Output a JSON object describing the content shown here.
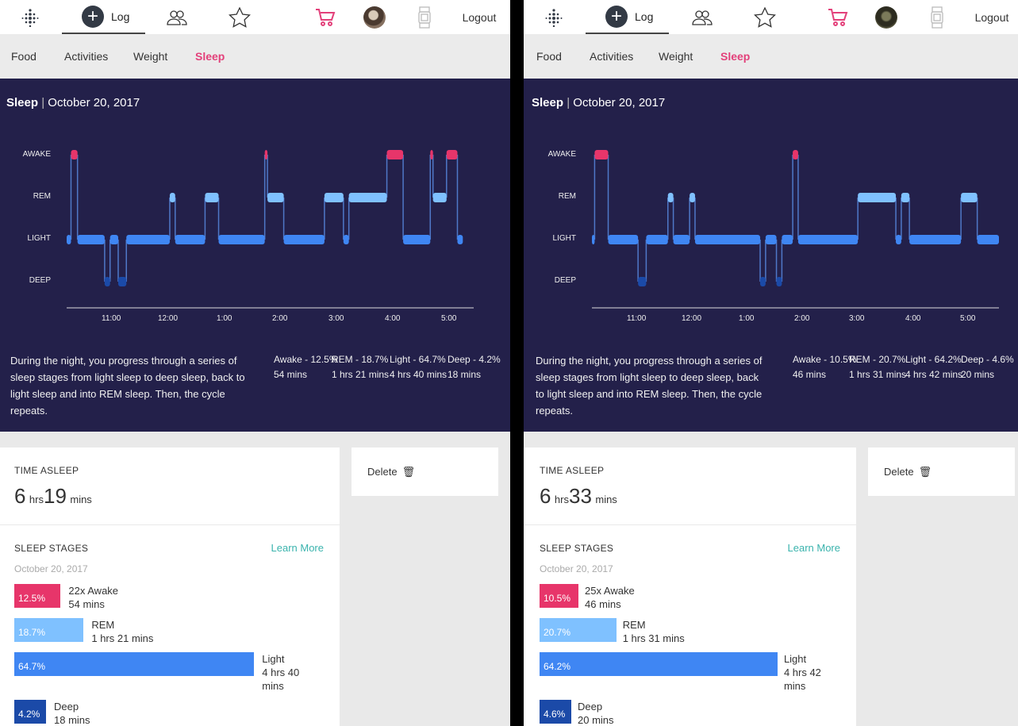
{
  "colors": {
    "awake": "#e7356a",
    "rem": "#7fc1ff",
    "light": "#3f86f3",
    "deep": "#1b4aa8",
    "panel": "#23204a",
    "accent": "#e3407a",
    "link": "#3ab3ad"
  },
  "left": {
    "nav": {
      "log_label": "Log",
      "logout_label": "Logout",
      "icons": [
        "fitbit-logo-icon",
        "plus-icon",
        "friends-icon",
        "star-icon",
        "cart-icon",
        "avatar",
        "watch-icon"
      ]
    },
    "subnav": [
      "Food",
      "Activities",
      "Weight",
      "Sleep"
    ],
    "subnav_active": "Sleep",
    "panel": {
      "title": "Sleep",
      "date": "October 20, 2017",
      "stages": [
        "AWAKE",
        "REM",
        "LIGHT",
        "DEEP"
      ],
      "ticks": [
        "11:00",
        "12:00",
        "1:00",
        "2:00",
        "3:00",
        "4:00",
        "5:00"
      ],
      "description": "During the night, you progress through a series of sleep stages from light sleep to deep sleep, back to light sleep and into REM sleep. Then, the cycle repeats.",
      "stats": [
        {
          "label": "Awake - 12.5%",
          "dur": "54 mins"
        },
        {
          "label": "REM - 18.7%",
          "dur": "1 hrs 21 mins"
        },
        {
          "label": "Light - 64.7%",
          "dur": "4 hrs 40 mins"
        },
        {
          "label": "Deep - 4.2%",
          "dur": "18 mins"
        }
      ]
    },
    "time_asleep": {
      "label": "TIME ASLEEP",
      "hours": "6",
      "hrs_unit": "hrs",
      "mins": "19",
      "mins_unit": "mins"
    },
    "sleep_stages": {
      "label": "SLEEP STAGES",
      "learn_more": "Learn More",
      "date": "October 20, 2017",
      "rows": [
        {
          "pct_label": "12.5%",
          "pct": 12.5,
          "name": "22x Awake",
          "dur": "54 mins"
        },
        {
          "pct_label": "18.7%",
          "pct": 18.7,
          "name": "REM",
          "dur": "1 hrs 21 mins"
        },
        {
          "pct_label": "64.7%",
          "pct": 64.7,
          "name": "Light",
          "dur": "4 hrs 40",
          "dur2": "mins"
        },
        {
          "pct_label": "4.2%",
          "pct": 4.2,
          "name": "Deep",
          "dur": "18 mins"
        }
      ]
    },
    "delete_label": "Delete"
  },
  "right": {
    "nav": {
      "log_label": "Log",
      "logout_label": "Logout"
    },
    "subnav": [
      "Food",
      "Activities",
      "Weight",
      "Sleep"
    ],
    "subnav_active": "Sleep",
    "panel": {
      "title": "Sleep",
      "date": "October 20, 2017",
      "stages": [
        "AWAKE",
        "REM",
        "LIGHT",
        "DEEP"
      ],
      "ticks": [
        "11:00",
        "12:00",
        "1:00",
        "2:00",
        "3:00",
        "4:00",
        "5:00"
      ],
      "description": "During the night, you progress through a series of sleep stages from light sleep to deep sleep, back to light sleep and into REM sleep. Then, the cycle repeats.",
      "stats": [
        {
          "label": "Awake - 10.5%",
          "dur": "46 mins"
        },
        {
          "label": "REM - 20.7%",
          "dur": "1 hrs 31 mins"
        },
        {
          "label": "Light - 64.2%",
          "dur": "4 hrs 42 mins"
        },
        {
          "label": "Deep - 4.6%",
          "dur": "20 mins"
        }
      ]
    },
    "time_asleep": {
      "label": "TIME ASLEEP",
      "hours": "6",
      "hrs_unit": "hrs",
      "mins": "33",
      "mins_unit": "mins"
    },
    "sleep_stages": {
      "label": "SLEEP STAGES",
      "learn_more": "Learn More",
      "date": "October 20, 2017",
      "rows": [
        {
          "pct_label": "10.5%",
          "pct": 10.5,
          "name": "25x Awake",
          "dur": "46 mins"
        },
        {
          "pct_label": "20.7%",
          "pct": 20.7,
          "name": "REM",
          "dur": "1 hrs 31 mins"
        },
        {
          "pct_label": "64.2%",
          "pct": 64.2,
          "name": "Light",
          "dur": "4 hrs 42",
          "dur2": "mins"
        },
        {
          "pct_label": "4.6%",
          "pct": 4.6,
          "name": "Deep",
          "dur": "20 mins"
        }
      ]
    },
    "delete_label": "Delete"
  },
  "chart_data": [
    {
      "type": "hypnogram",
      "stages": [
        "AWAKE",
        "REM",
        "LIGHT",
        "DEEP"
      ],
      "x_ticks": [
        "11:00",
        "12:00",
        "1:00",
        "2:00",
        "3:00",
        "4:00",
        "5:00"
      ],
      "x_range_hours": [
        10.0,
        17.5
      ],
      "segments": [
        [
          10.0,
          10.08,
          "LIGHT"
        ],
        [
          10.08,
          10.2,
          "AWAKE"
        ],
        [
          10.2,
          10.7,
          "LIGHT"
        ],
        [
          10.7,
          10.8,
          "DEEP"
        ],
        [
          10.8,
          10.95,
          "LIGHT"
        ],
        [
          10.95,
          11.1,
          "DEEP"
        ],
        [
          11.1,
          11.9,
          "LIGHT"
        ],
        [
          11.9,
          12.0,
          "REM"
        ],
        [
          12.0,
          12.55,
          "LIGHT"
        ],
        [
          12.55,
          12.8,
          "REM"
        ],
        [
          12.8,
          13.65,
          "LIGHT"
        ],
        [
          13.65,
          13.7,
          "AWAKE"
        ],
        [
          13.7,
          14.0,
          "REM"
        ],
        [
          14.0,
          14.75,
          "LIGHT"
        ],
        [
          14.75,
          15.1,
          "REM"
        ],
        [
          15.1,
          15.2,
          "LIGHT"
        ],
        [
          15.2,
          15.9,
          "REM"
        ],
        [
          15.9,
          16.2,
          "AWAKE"
        ],
        [
          16.2,
          16.7,
          "LIGHT"
        ],
        [
          16.7,
          16.75,
          "AWAKE"
        ],
        [
          16.75,
          17.0,
          "REM"
        ],
        [
          17.0,
          17.2,
          "AWAKE"
        ],
        [
          17.2,
          17.3,
          "LIGHT"
        ]
      ]
    },
    {
      "type": "hypnogram",
      "stages": [
        "AWAKE",
        "REM",
        "LIGHT",
        "DEEP"
      ],
      "x_ticks": [
        "11:00",
        "12:00",
        "1:00",
        "2:00",
        "3:00",
        "4:00",
        "5:00"
      ],
      "x_range_hours": [
        10.0,
        17.5
      ],
      "segments": [
        [
          10.0,
          10.05,
          "LIGHT"
        ],
        [
          10.05,
          10.3,
          "AWAKE"
        ],
        [
          10.3,
          10.85,
          "LIGHT"
        ],
        [
          10.85,
          11.0,
          "DEEP"
        ],
        [
          11.0,
          11.4,
          "LIGHT"
        ],
        [
          11.4,
          11.5,
          "REM"
        ],
        [
          11.5,
          11.8,
          "LIGHT"
        ],
        [
          11.8,
          11.9,
          "REM"
        ],
        [
          11.9,
          13.1,
          "LIGHT"
        ],
        [
          13.1,
          13.2,
          "DEEP"
        ],
        [
          13.2,
          13.4,
          "LIGHT"
        ],
        [
          13.4,
          13.5,
          "DEEP"
        ],
        [
          13.5,
          13.7,
          "LIGHT"
        ],
        [
          13.7,
          13.8,
          "AWAKE"
        ],
        [
          13.8,
          14.9,
          "LIGHT"
        ],
        [
          14.9,
          15.6,
          "REM"
        ],
        [
          15.6,
          15.7,
          "LIGHT"
        ],
        [
          15.7,
          15.85,
          "REM"
        ],
        [
          15.85,
          16.8,
          "LIGHT"
        ],
        [
          16.8,
          17.1,
          "REM"
        ],
        [
          17.1,
          17.5,
          "LIGHT"
        ]
      ]
    }
  ]
}
